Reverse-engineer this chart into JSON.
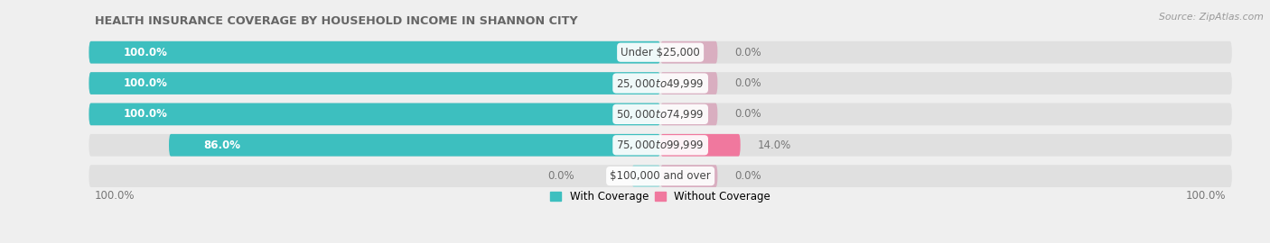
{
  "title": "HEALTH INSURANCE COVERAGE BY HOUSEHOLD INCOME IN SHANNON CITY",
  "source": "Source: ZipAtlas.com",
  "categories": [
    "Under $25,000",
    "$25,000 to $49,999",
    "$50,000 to $74,999",
    "$75,000 to $99,999",
    "$100,000 and over"
  ],
  "with_coverage": [
    100.0,
    100.0,
    100.0,
    86.0,
    0.0
  ],
  "without_coverage": [
    0.0,
    0.0,
    0.0,
    14.0,
    0.0
  ],
  "color_coverage": "#3dbfbf",
  "color_without": "#f0789e",
  "color_without_small": "#d9aec0",
  "bg_color": "#efefef",
  "bar_bg_color": "#e0e0e0",
  "bar_bg_color2": "#e8e8e8",
  "title_color": "#666666",
  "source_color": "#999999",
  "label_pct_color": "#777777",
  "white": "#ffffff"
}
